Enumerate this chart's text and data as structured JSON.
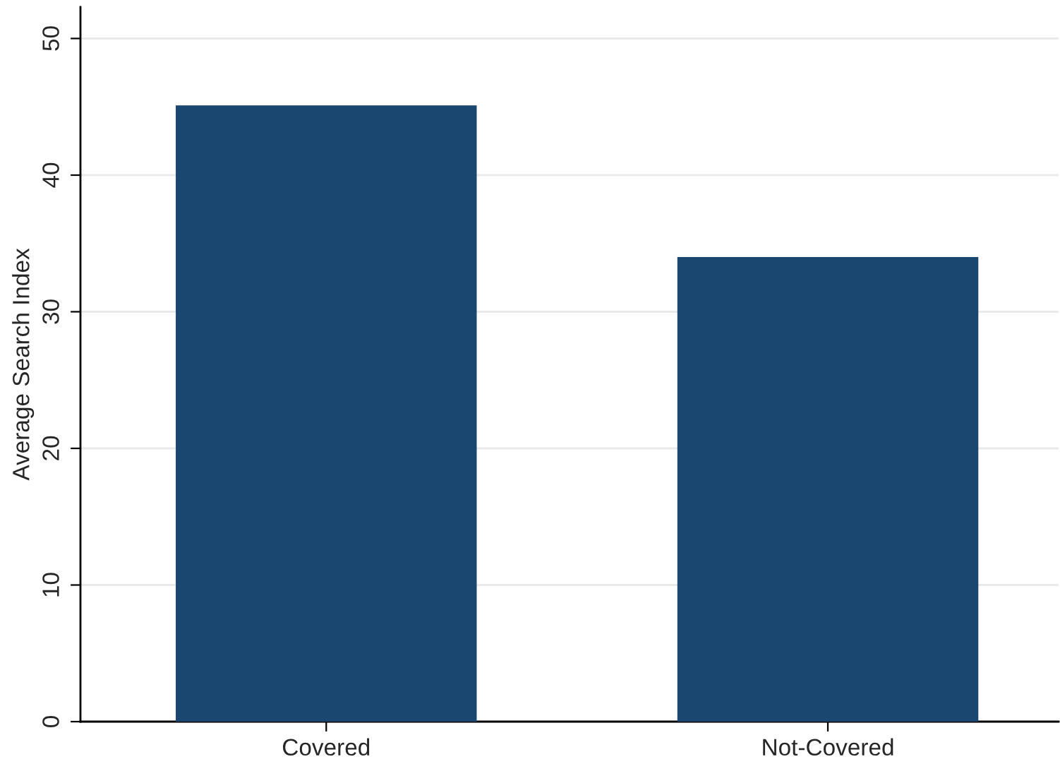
{
  "chart_data": {
    "type": "bar",
    "ylabel": "Average Search Index",
    "categories": [
      "Covered",
      "Not-Covered"
    ],
    "values": [
      45.1,
      34.0
    ],
    "color": "#1a476f",
    "ylim": [
      0,
      52.3
    ],
    "yticks": [
      0,
      10,
      20,
      30,
      40,
      50
    ],
    "grid": "y",
    "legend": false
  }
}
